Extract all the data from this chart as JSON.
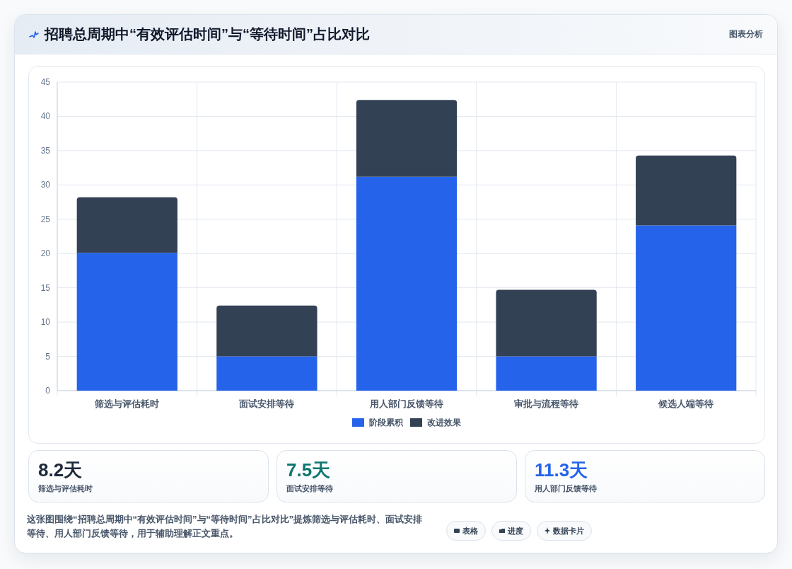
{
  "chart_data": [
    {
      "type": "bar",
      "title": "招聘总周期中“有效评估时间”与“等待时间”占比对比",
      "categories": [
        "筛选与评估耗时",
        "面试安排等待",
        "用人部门反馈等待",
        "审批与流程等待",
        "候选人端等待"
      ],
      "series": [
        {
          "name": "阶段累积",
          "color": "#2563eb",
          "values": [
            20.1,
            5,
            31.2,
            5,
            24.1
          ]
        },
        {
          "name": "改进效果",
          "color": "#334155",
          "values": [
            8.1,
            7.4,
            11.2,
            9.7,
            10.2
          ]
        }
      ],
      "stacked": true,
      "ylim": [
        0,
        45
      ],
      "yticks": [
        0,
        5,
        10,
        15,
        20,
        25,
        30,
        35,
        40,
        45
      ],
      "grid": true,
      "legend": "bottom",
      "annotations": [
        "图表分析",
        "这张图围绕“招聘总周期中“有效评估时间”与“等待时间”占比对比”提炼筛选与评估耗时、面试安排等待、用人部门反馈等待，用于辅助理解正文重点。",
        "表格",
        "进度",
        "数据卡片"
      ]
    },
    {
      "type": "other",
      "annotations": [
        "8.2天",
        "筛选与评估耗时",
        "7.5天",
        "面试安排等待",
        "11.3天",
        "用人部门反馈等待"
      ]
    }
  ]
}
